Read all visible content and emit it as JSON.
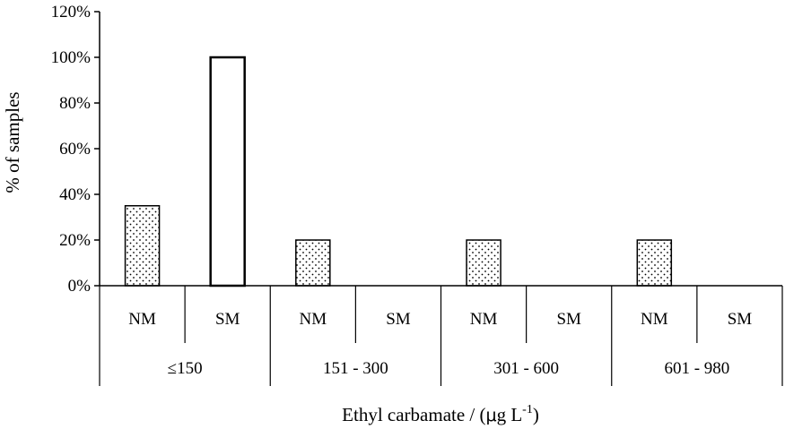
{
  "chart_data": {
    "type": "bar",
    "ylabel": "% of samples",
    "xlabel": {
      "main": "Ethyl carbamate / (",
      "mu": "μ",
      "unit": "g L",
      "sup": "-1",
      "close": ")"
    },
    "ylim": [
      0,
      120
    ],
    "yticks": [
      {
        "value": 0,
        "label": "0%"
      },
      {
        "value": 20,
        "label": "20%"
      },
      {
        "value": 40,
        "label": "40%"
      },
      {
        "value": 60,
        "label": "60%"
      },
      {
        "value": 80,
        "label": "80%"
      },
      {
        "value": 100,
        "label": "100%"
      },
      {
        "value": 120,
        "label": "120%"
      }
    ],
    "groups": [
      {
        "label": "≤150",
        "bars": [
          {
            "category": "NM",
            "value": 35,
            "pattern": "dotted"
          },
          {
            "category": "SM",
            "value": 100,
            "pattern": "open"
          }
        ]
      },
      {
        "label": "151 - 300",
        "bars": [
          {
            "category": "NM",
            "value": 20,
            "pattern": "dotted"
          },
          {
            "category": "SM",
            "value": 0,
            "pattern": "open"
          }
        ]
      },
      {
        "label": "301 - 600",
        "bars": [
          {
            "category": "NM",
            "value": 20,
            "pattern": "dotted"
          },
          {
            "category": "SM",
            "value": 0,
            "pattern": "open"
          }
        ]
      },
      {
        "label": "601 - 980",
        "bars": [
          {
            "category": "NM",
            "value": 20,
            "pattern": "dotted"
          },
          {
            "category": "SM",
            "value": 0,
            "pattern": "open"
          }
        ]
      }
    ],
    "grid": false,
    "legend": "none",
    "colors": {
      "axis": "#000000",
      "bar_fill": "#ffffff",
      "dots": "#000000"
    }
  }
}
